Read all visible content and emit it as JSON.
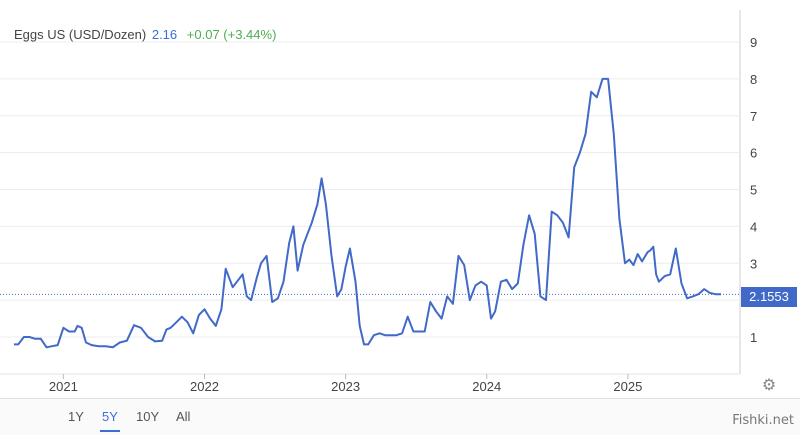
{
  "legend": {
    "name": "Eggs US (USD/Dozen)",
    "price": "2.16",
    "change": "+0.07 (+3.44%)"
  },
  "range_buttons": [
    "1Y",
    "5Y",
    "10Y",
    "All"
  ],
  "active_range": "5Y",
  "price_tag": "2.1553",
  "watermark": "Fishki.net",
  "colors": {
    "line": "#4169c8",
    "change_positive": "#4caf50",
    "tag": "#4169c8"
  },
  "chart_data": {
    "type": "line",
    "title": "",
    "xlabel": "",
    "ylabel": "",
    "y_tick_labels": [
      "1",
      "2",
      "3",
      "4",
      "5",
      "6",
      "7",
      "8",
      "9"
    ],
    "y_axis_side": "right",
    "ylim": [
      0,
      9.5
    ],
    "x_tick_labels": [
      "2021",
      "2022",
      "2023",
      "2024",
      "2025"
    ],
    "xlim": [
      2020.65,
      2025.75
    ],
    "current_value": 2.1553,
    "grid": "horizontal",
    "series": [
      {
        "x": [
          2020.65,
          2020.68,
          2020.72,
          2020.76,
          2020.8,
          2020.84,
          2020.88,
          2020.92,
          2020.96,
          2021.0,
          2021.04,
          2021.08,
          2021.1,
          2021.13,
          2021.16,
          2021.2,
          2021.25,
          2021.3,
          2021.35,
          2021.4,
          2021.45,
          2021.5,
          2021.55,
          2021.6,
          2021.65,
          2021.7,
          2021.73,
          2021.76,
          2021.8,
          2021.84,
          2021.88,
          2021.92,
          2021.96,
          2022.0,
          2022.04,
          2022.08,
          2022.12,
          2022.15,
          2022.2,
          2022.24,
          2022.27,
          2022.3,
          2022.33,
          2022.37,
          2022.4,
          2022.44,
          2022.48,
          2022.52,
          2022.56,
          2022.6,
          2022.63,
          2022.66,
          2022.7,
          2022.73,
          2022.76,
          2022.8,
          2022.83,
          2022.86,
          2022.9,
          2022.94,
          2022.97,
          2023.0,
          2023.03,
          2023.07,
          2023.1,
          2023.13,
          2023.16,
          2023.2,
          2023.24,
          2023.28,
          2023.32,
          2023.36,
          2023.4,
          2023.44,
          2023.48,
          2023.52,
          2023.56,
          2023.6,
          2023.64,
          2023.68,
          2023.72,
          2023.76,
          2023.8,
          2023.84,
          2023.88,
          2023.92,
          2023.96,
          2024.0,
          2024.03,
          2024.06,
          2024.1,
          2024.14,
          2024.18,
          2024.22,
          2024.26,
          2024.3,
          2024.34,
          2024.38,
          2024.42,
          2024.46,
          2024.5,
          2024.54,
          2024.58,
          2024.62,
          2024.66,
          2024.7,
          2024.74,
          2024.78,
          2024.82,
          2024.86,
          2024.9,
          2024.94,
          2024.98,
          2025.01,
          2025.04,
          2025.07,
          2025.1,
          2025.14,
          2025.16,
          2025.18,
          2025.2,
          2025.22,
          2025.26,
          2025.3,
          2025.34,
          2025.38,
          2025.42,
          2025.46,
          2025.5,
          2025.54,
          2025.58,
          2025.62,
          2025.66
        ],
        "values": [
          0.8,
          0.8,
          1.0,
          1.0,
          0.95,
          0.95,
          0.72,
          0.75,
          0.78,
          1.25,
          1.15,
          1.15,
          1.3,
          1.25,
          0.85,
          0.78,
          0.75,
          0.75,
          0.72,
          0.85,
          0.9,
          1.32,
          1.25,
          1.0,
          0.88,
          0.9,
          1.2,
          1.25,
          1.4,
          1.55,
          1.4,
          1.1,
          1.6,
          1.75,
          1.5,
          1.3,
          1.75,
          2.85,
          2.35,
          2.55,
          2.7,
          2.1,
          2.0,
          2.6,
          3.0,
          3.2,
          1.95,
          2.05,
          2.5,
          3.55,
          4.0,
          2.8,
          3.5,
          3.8,
          4.1,
          4.6,
          5.3,
          4.6,
          3.2,
          2.1,
          2.3,
          2.9,
          3.4,
          2.5,
          1.3,
          0.8,
          0.8,
          1.05,
          1.1,
          1.05,
          1.05,
          1.05,
          1.1,
          1.55,
          1.15,
          1.15,
          1.15,
          1.95,
          1.7,
          1.5,
          2.1,
          1.9,
          3.2,
          2.95,
          2.0,
          2.4,
          2.5,
          2.4,
          1.5,
          1.7,
          2.5,
          2.55,
          2.3,
          2.45,
          3.5,
          4.3,
          3.8,
          2.1,
          2.0,
          4.4,
          4.3,
          4.1,
          3.7,
          5.6,
          6.0,
          6.5,
          7.65,
          7.5,
          8.0,
          8.0,
          6.5,
          4.2,
          3.0,
          3.1,
          2.95,
          3.25,
          3.05,
          3.3,
          3.35,
          3.45,
          2.7,
          2.5,
          2.65,
          2.7,
          3.4,
          2.45,
          2.05,
          2.1,
          2.16,
          2.3,
          2.2,
          2.16,
          2.16
        ]
      }
    ]
  }
}
